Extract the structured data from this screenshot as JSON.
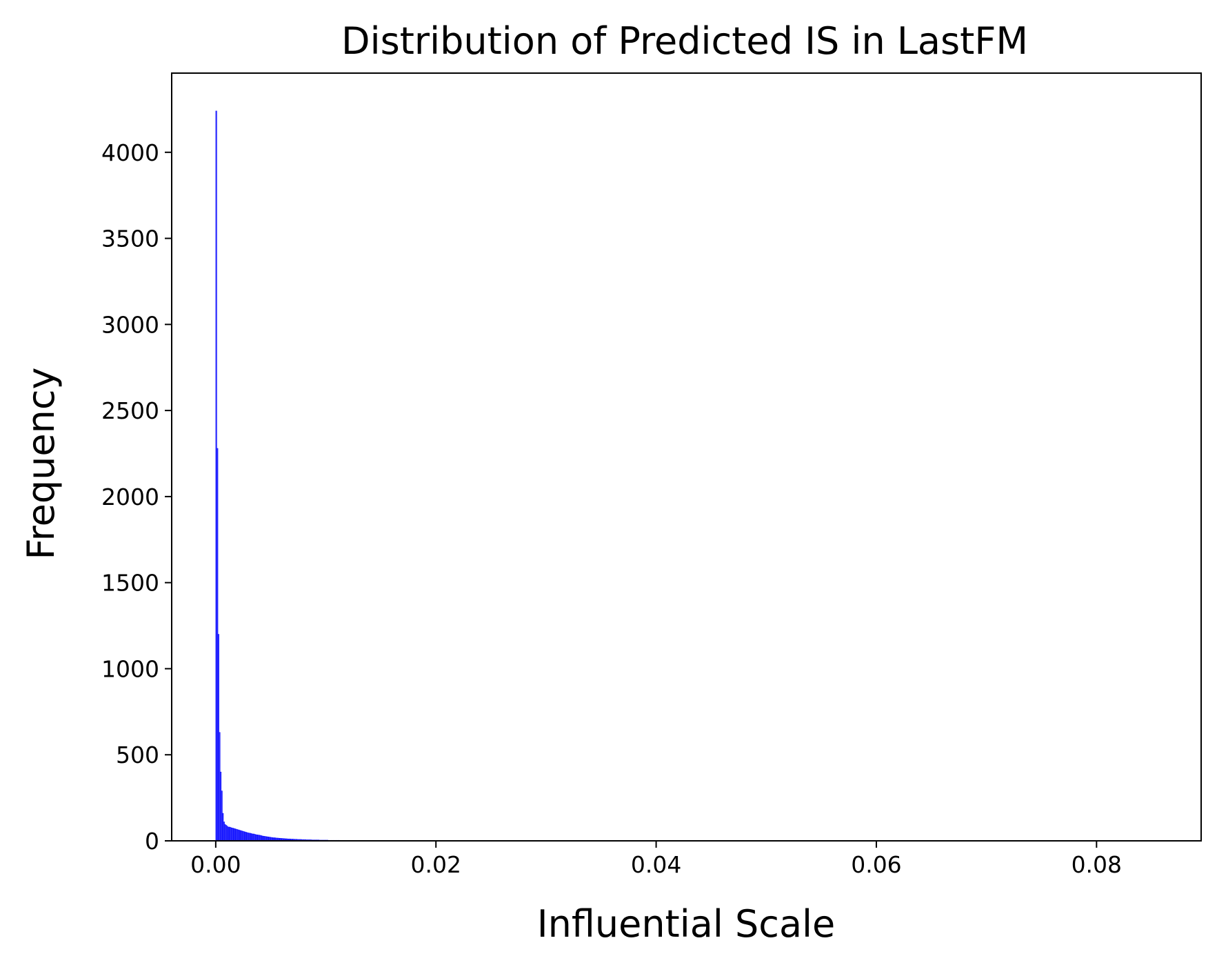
{
  "chart_data": {
    "type": "bar",
    "title": "Distribution of Predicted IS in LastFM",
    "xlabel": "Influential Scale",
    "ylabel": "Frequency",
    "xlim": [
      -0.004,
      0.0895
    ],
    "ylim": [
      0,
      4460
    ],
    "grid": false,
    "legend": "none",
    "bar_color": "#0000ff",
    "x_ticks": [
      {
        "value": 0.0,
        "label": "0.00"
      },
      {
        "value": 0.02,
        "label": "0.02"
      },
      {
        "value": 0.04,
        "label": "0.04"
      },
      {
        "value": 0.06,
        "label": "0.06"
      },
      {
        "value": 0.08,
        "label": "0.08"
      }
    ],
    "y_ticks": [
      {
        "value": 0,
        "label": "0"
      },
      {
        "value": 500,
        "label": "500"
      },
      {
        "value": 1000,
        "label": "1000"
      },
      {
        "value": 1500,
        "label": "1500"
      },
      {
        "value": 2000,
        "label": "2000"
      },
      {
        "value": 2500,
        "label": "2500"
      },
      {
        "value": 3000,
        "label": "3000"
      },
      {
        "value": 3500,
        "label": "3500"
      },
      {
        "value": 4000,
        "label": "4000"
      }
    ],
    "bin_start": 0.0,
    "bin_width": 0.0001,
    "values": [
      4240,
      2280,
      1200,
      630,
      400,
      290,
      160,
      110,
      95,
      90,
      85,
      80,
      80,
      78,
      75,
      74,
      72,
      70,
      68,
      66,
      64,
      62,
      60,
      58,
      56,
      54,
      52,
      50,
      48,
      46,
      45,
      44,
      42,
      40,
      40,
      38,
      36,
      35,
      34,
      33,
      32,
      30,
      28,
      27,
      26,
      25,
      24,
      23,
      22,
      21,
      20,
      19,
      18,
      18,
      17,
      16,
      16,
      15,
      15,
      14,
      14,
      13,
      13,
      12,
      12,
      11,
      11,
      11,
      10,
      10,
      10,
      9,
      9,
      9,
      8,
      8,
      8,
      8,
      7,
      7,
      7,
      7,
      6,
      6,
      6,
      6,
      6,
      5,
      5,
      5,
      5,
      5,
      5,
      5,
      4,
      4,
      4,
      4,
      4,
      4,
      4,
      4,
      3,
      3,
      3,
      3,
      3,
      3,
      3,
      3,
      3,
      3,
      3,
      2,
      2,
      2,
      2,
      2,
      2,
      2,
      2,
      2,
      2,
      2,
      2,
      2,
      2,
      2,
      2,
      2,
      2,
      2,
      2,
      2,
      2,
      2,
      2,
      2,
      2,
      2,
      2,
      2,
      2,
      2,
      2,
      2,
      2,
      2,
      2,
      2,
      1,
      1,
      1,
      1,
      1,
      1,
      1,
      1,
      1,
      1,
      1,
      1,
      1,
      1,
      1,
      1,
      1,
      1,
      1,
      1,
      1,
      1,
      1,
      1,
      1,
      1,
      1,
      1,
      1,
      1,
      1,
      1,
      1,
      1,
      1,
      1,
      1,
      1,
      1,
      1,
      1,
      1,
      1,
      1,
      1,
      1,
      1,
      1,
      1,
      1,
      1,
      1,
      1,
      1,
      1,
      1,
      1,
      1,
      1,
      1
    ]
  }
}
